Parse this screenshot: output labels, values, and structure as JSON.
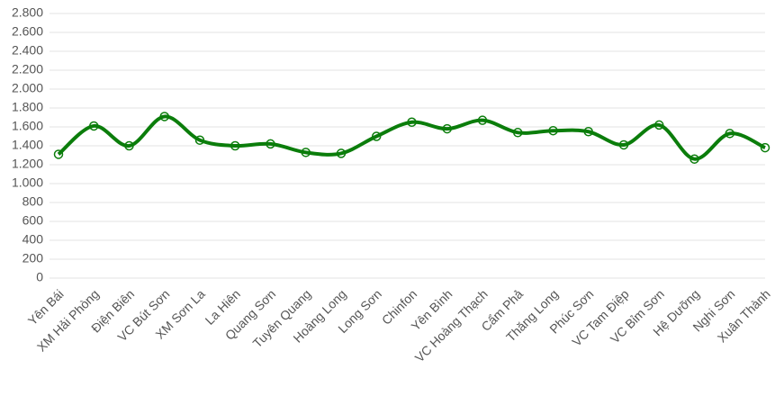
{
  "chart_data": {
    "type": "line",
    "categories": [
      "Yên Bái",
      "XM Hải Phòng",
      "Điện Biên",
      "VC Bút Sơn",
      "XM Sơn La",
      "La Hiên",
      "Quang Sơn",
      "Tuyên Quang",
      "Hoàng Long",
      "Long Sơn",
      "Chinfon",
      "Yên Bình",
      "VC Hoàng Thạch",
      "Cẩm Phả",
      "Thăng Long",
      "Phúc Sơn",
      "VC Tam Điệp",
      "VC Bỉm Sơn",
      "Hệ Dưỡng",
      "Nghi Sơn",
      "Xuân Thành"
    ],
    "values": [
      1310,
      1610,
      1400,
      1710,
      1460,
      1400,
      1420,
      1330,
      1320,
      1500,
      1650,
      1580,
      1670,
      1540,
      1560,
      1550,
      1410,
      1620,
      1260,
      1530,
      1380
    ],
    "color": "#0b7d0b",
    "ylim": [
      0,
      2800
    ],
    "yticks": [
      0,
      200,
      400,
      600,
      800,
      {
        "value": 1000,
        "label": "1.000"
      },
      {
        "value": 1200,
        "label": "1.200"
      },
      {
        "value": 1400,
        "label": "1.400"
      },
      {
        "value": 1600,
        "label": "1.600"
      },
      {
        "value": 1800,
        "label": "1.800"
      },
      {
        "value": 2000,
        "label": "2.000"
      },
      {
        "value": 2200,
        "label": "2.200"
      },
      {
        "value": 2400,
        "label": "2.400"
      },
      {
        "value": 2600,
        "label": "2.600"
      },
      {
        "value": 2800,
        "label": "2.800"
      }
    ],
    "grid": true
  }
}
